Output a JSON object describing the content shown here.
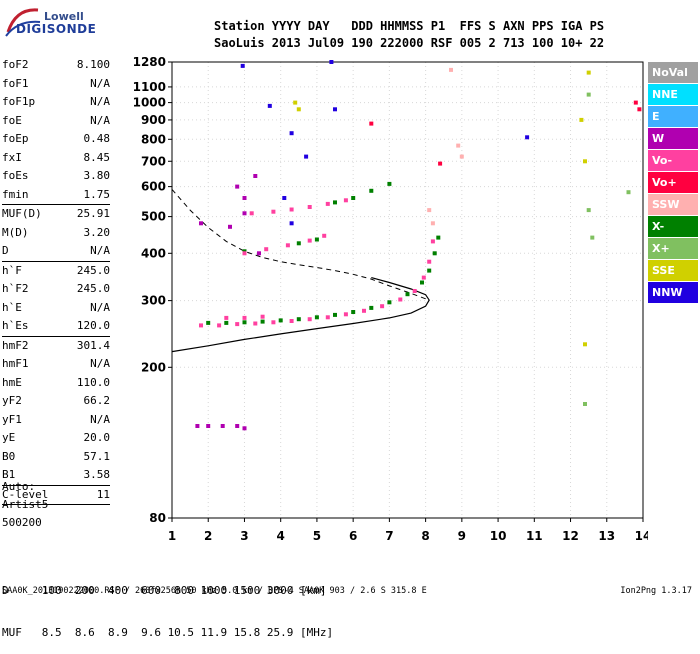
{
  "logo": {
    "line1": "Lowell",
    "line2": "DIGISONDE"
  },
  "header": {
    "row1": "Station YYYY DAY   DDD HHMMSS P1  FFS S AXN PPS IGA PS",
    "row2": "SaoLuis 2013 Jul09 190 222000 RSF 005 2 713 100 10+ 22"
  },
  "params": [
    {
      "k": "foF2",
      "v": "8.100"
    },
    {
      "k": "foF1",
      "v": "N/A"
    },
    {
      "k": "foF1p",
      "v": "N/A"
    },
    {
      "k": "foE",
      "v": "N/A"
    },
    {
      "k": "foEp",
      "v": "0.48"
    },
    {
      "k": "fxI",
      "v": "8.45"
    },
    {
      "k": "foEs",
      "v": "3.80"
    },
    {
      "k": "fmin",
      "v": "1.75"
    },
    {
      "sep": true
    },
    {
      "k": "MUF(D)",
      "v": "25.91"
    },
    {
      "k": "M(D)",
      "v": "3.20"
    },
    {
      "k": "D",
      "v": "N/A"
    },
    {
      "sep": true
    },
    {
      "k": "h`F",
      "v": "245.0"
    },
    {
      "k": "h`F2",
      "v": "245.0"
    },
    {
      "k": "h`E",
      "v": "N/A"
    },
    {
      "k": "h`Es",
      "v": "120.0"
    },
    {
      "sep": true
    },
    {
      "k": "hmF2",
      "v": "301.4"
    },
    {
      "k": "hmF1",
      "v": "N/A"
    },
    {
      "k": "hmE",
      "v": "110.0"
    },
    {
      "k": "yF2",
      "v": "66.2"
    },
    {
      "k": "yF1",
      "v": "N/A"
    },
    {
      "k": "yE",
      "v": "20.0"
    },
    {
      "k": "B0",
      "v": "57.1"
    },
    {
      "k": "B1",
      "v": "3.58"
    },
    {
      "sep": true
    },
    {
      "k": "C-level",
      "v": "11"
    },
    {
      "sep": true
    }
  ],
  "autoscaling": {
    "line1": "Auto:",
    "line2": "Artist5",
    "line3": "500200"
  },
  "bottom_table": {
    "row1": "D     100  200  400  600  800 1000 1500 3000 [km]",
    "row2": "MUF   8.5  8.6  8.9  9.6 10.5 11.9 15.8 25.9 [MHz]"
  },
  "footer": {
    "left": "SAA0K_2013190222000.RSF / 260fx256h 50 kHz 5.0 km / DPS-4 SAA0K 903 / 2.6 S 315.8 E",
    "right": "Ion2Png 1.3.17"
  },
  "legend": [
    {
      "label": "NoVal",
      "color": "#a0a0a0"
    },
    {
      "label": "NNE",
      "color": "#00e0ff"
    },
    {
      "label": "E",
      "color": "#40b0ff"
    },
    {
      "label": "W",
      "color": "#b000b0"
    },
    {
      "label": "Vo-",
      "color": "#ff40a0"
    },
    {
      "label": "Vo+",
      "color": "#ff0040"
    },
    {
      "label": "SSW",
      "color": "#ffb0b0"
    },
    {
      "label": "X-",
      "color": "#008000"
    },
    {
      "label": "X+",
      "color": "#80c060"
    },
    {
      "label": "SSE",
      "color": "#d0d000"
    },
    {
      "label": "NNW",
      "color": "#2000e0"
    }
  ],
  "chart_data": {
    "type": "scatter",
    "title": "",
    "xlabel": "",
    "ylabel": "",
    "xlim": [
      1,
      14
    ],
    "ylim": [
      80,
      1280
    ],
    "y_scale": "log",
    "x_ticks": [
      1,
      2,
      3,
      4,
      5,
      6,
      7,
      8,
      9,
      10,
      11,
      12,
      13,
      14
    ],
    "y_ticks": [
      80,
      200,
      300,
      400,
      500,
      600,
      700,
      800,
      900,
      1000,
      1100,
      1280
    ],
    "grid": true,
    "legend_position": "right",
    "series": [
      {
        "name": "X-",
        "color": "#008000",
        "points": [
          [
            2.0,
            262
          ],
          [
            2.5,
            262
          ],
          [
            3.0,
            263
          ],
          [
            3.5,
            264
          ],
          [
            4.0,
            266
          ],
          [
            4.5,
            268
          ],
          [
            5.0,
            271
          ],
          [
            5.5,
            275
          ],
          [
            6.0,
            280
          ],
          [
            6.5,
            287
          ],
          [
            7.0,
            297
          ],
          [
            7.5,
            312
          ],
          [
            7.9,
            335
          ],
          [
            8.1,
            360
          ],
          [
            8.25,
            400
          ],
          [
            8.35,
            440
          ],
          [
            5.5,
            545
          ],
          [
            6.0,
            560
          ],
          [
            6.5,
            585
          ],
          [
            7.0,
            610
          ],
          [
            4.5,
            425
          ],
          [
            5.0,
            435
          ],
          [
            3.0,
            405
          ]
        ]
      },
      {
        "name": "Vo-",
        "color": "#ff40a0",
        "points": [
          [
            1.8,
            258
          ],
          [
            2.3,
            258
          ],
          [
            2.8,
            260
          ],
          [
            3.3,
            261
          ],
          [
            3.8,
            263
          ],
          [
            4.3,
            265
          ],
          [
            4.8,
            268
          ],
          [
            5.3,
            271
          ],
          [
            5.8,
            276
          ],
          [
            6.3,
            282
          ],
          [
            6.8,
            290
          ],
          [
            7.3,
            302
          ],
          [
            7.7,
            318
          ],
          [
            7.95,
            345
          ],
          [
            8.1,
            380
          ],
          [
            8.2,
            430
          ],
          [
            3.0,
            270
          ],
          [
            3.5,
            272
          ],
          [
            2.5,
            270
          ],
          [
            3.2,
            510
          ],
          [
            3.8,
            515
          ],
          [
            4.3,
            522
          ],
          [
            4.8,
            530
          ],
          [
            5.3,
            540
          ],
          [
            5.8,
            552
          ],
          [
            3.0,
            400
          ],
          [
            3.6,
            410
          ],
          [
            4.2,
            420
          ],
          [
            4.8,
            432
          ],
          [
            5.2,
            445
          ]
        ]
      },
      {
        "name": "W",
        "color": "#b000b0",
        "points": [
          [
            1.7,
            140
          ],
          [
            2.0,
            140
          ],
          [
            2.4,
            140
          ],
          [
            2.8,
            140
          ],
          [
            3.0,
            138
          ],
          [
            3.3,
            640
          ],
          [
            3.0,
            560
          ],
          [
            2.8,
            600
          ],
          [
            3.4,
            400
          ],
          [
            3.0,
            510
          ],
          [
            2.6,
            470
          ],
          [
            1.8,
            480
          ]
        ]
      },
      {
        "name": "NNW",
        "color": "#2000e0",
        "points": [
          [
            2.95,
            1250
          ],
          [
            3.7,
            980
          ],
          [
            4.3,
            830
          ],
          [
            4.7,
            720
          ],
          [
            5.5,
            960
          ],
          [
            5.4,
            1280
          ],
          [
            10.8,
            810
          ],
          [
            4.3,
            480
          ],
          [
            4.1,
            560
          ]
        ]
      },
      {
        "name": "SSW",
        "color": "#ffb0b0",
        "points": [
          [
            8.7,
            1220
          ],
          [
            8.9,
            770
          ],
          [
            9.0,
            720
          ],
          [
            8.1,
            520
          ],
          [
            8.2,
            480
          ]
        ]
      },
      {
        "name": "Vo+",
        "color": "#ff0040",
        "points": [
          [
            13.8,
            1000
          ],
          [
            13.9,
            960
          ],
          [
            8.4,
            690
          ],
          [
            6.5,
            880
          ]
        ]
      },
      {
        "name": "SSE",
        "color": "#d0d000",
        "points": [
          [
            12.3,
            900
          ],
          [
            12.4,
            700
          ],
          [
            12.4,
            230
          ],
          [
            12.5,
            1200
          ],
          [
            4.4,
            1000
          ],
          [
            4.5,
            960
          ]
        ]
      },
      {
        "name": "X+",
        "color": "#80c060",
        "points": [
          [
            12.5,
            1050
          ],
          [
            12.5,
            520
          ],
          [
            12.6,
            440
          ],
          [
            12.4,
            160
          ],
          [
            13.6,
            580
          ]
        ]
      }
    ],
    "profile_solid": [
      [
        1,
        220
      ],
      [
        2,
        228
      ],
      [
        3,
        237
      ],
      [
        4,
        245
      ],
      [
        5,
        253
      ],
      [
        6,
        261
      ],
      [
        7,
        270
      ],
      [
        7.6,
        278
      ],
      [
        8.0,
        290
      ],
      [
        8.1,
        301
      ],
      [
        8.0,
        311
      ],
      [
        7.6,
        322
      ],
      [
        7.0,
        335
      ],
      [
        6.5,
        345
      ]
    ],
    "profile_dashed": [
      [
        1,
        590
      ],
      [
        1.5,
        520
      ],
      [
        2,
        468
      ],
      [
        2.5,
        430
      ],
      [
        3,
        405
      ],
      [
        3.5,
        390
      ],
      [
        4,
        380
      ],
      [
        4.5,
        373
      ],
      [
        5,
        367
      ],
      [
        5.5,
        360
      ],
      [
        6,
        352
      ],
      [
        6.5,
        342
      ],
      [
        7,
        328
      ],
      [
        7.5,
        316
      ],
      [
        8.1,
        301
      ]
    ]
  }
}
